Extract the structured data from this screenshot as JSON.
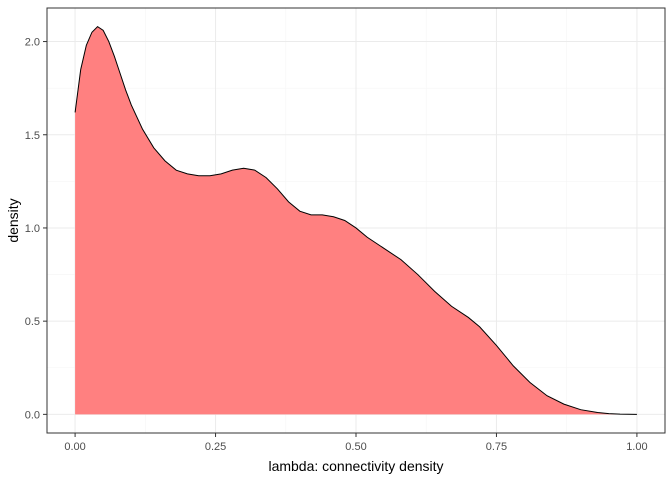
{
  "chart_data": {
    "type": "area",
    "title": "",
    "xlabel": "lambda: connectivity density",
    "ylabel": "density",
    "xlim": [
      -0.05,
      1.05
    ],
    "ylim": [
      -0.1,
      2.18
    ],
    "x_ticks": [
      0.0,
      0.25,
      0.5,
      0.75,
      1.0
    ],
    "x_tick_labels": [
      "0.00",
      "0.25",
      "0.50",
      "0.75",
      "1.00"
    ],
    "y_ticks": [
      0.0,
      0.5,
      1.0,
      1.5,
      2.0
    ],
    "y_tick_labels": [
      "0.0",
      "0.5",
      "1.0",
      "1.5",
      "2.0"
    ],
    "grid": true,
    "colors": {
      "fill": "#ff8080",
      "outline": "#000000",
      "panel_border": "#333333",
      "grid": "#ebebeb"
    },
    "series": [
      {
        "x": [
          0.0,
          0.01,
          0.02,
          0.03,
          0.04,
          0.05,
          0.06,
          0.07,
          0.08,
          0.09,
          0.1,
          0.12,
          0.14,
          0.16,
          0.18,
          0.2,
          0.22,
          0.24,
          0.26,
          0.28,
          0.3,
          0.32,
          0.34,
          0.36,
          0.38,
          0.4,
          0.42,
          0.44,
          0.46,
          0.48,
          0.5,
          0.52,
          0.55,
          0.58,
          0.61,
          0.64,
          0.67,
          0.7,
          0.72,
          0.75,
          0.78,
          0.81,
          0.84,
          0.87,
          0.9,
          0.93,
          0.95,
          0.97,
          1.0
        ],
        "y": [
          1.62,
          1.85,
          1.98,
          2.05,
          2.08,
          2.06,
          2.0,
          1.92,
          1.83,
          1.74,
          1.66,
          1.53,
          1.43,
          1.36,
          1.31,
          1.29,
          1.28,
          1.28,
          1.29,
          1.31,
          1.32,
          1.31,
          1.27,
          1.21,
          1.14,
          1.09,
          1.07,
          1.07,
          1.06,
          1.04,
          1.0,
          0.95,
          0.89,
          0.83,
          0.75,
          0.66,
          0.58,
          0.52,
          0.47,
          0.37,
          0.26,
          0.17,
          0.1,
          0.055,
          0.025,
          0.01,
          0.004,
          0.001,
          0.0
        ]
      }
    ]
  }
}
